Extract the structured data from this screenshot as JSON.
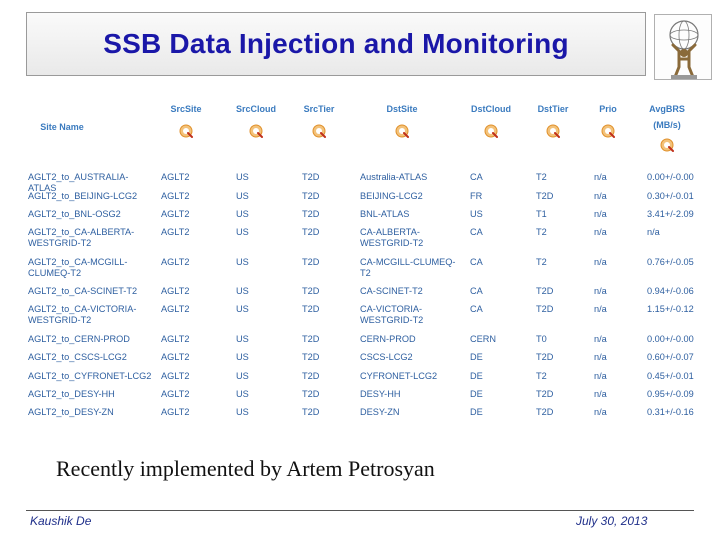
{
  "title": "SSB Data Injection and Monitoring",
  "logo": {
    "icon": "atlas-logo"
  },
  "columns": [
    {
      "key": "site",
      "label": "Site Name"
    },
    {
      "key": "srcsite",
      "label": "SrcSite"
    },
    {
      "key": "srccloud",
      "label": "SrcCloud"
    },
    {
      "key": "srctier",
      "label": "SrcTier"
    },
    {
      "key": "dstsite",
      "label": "DstSite"
    },
    {
      "key": "dstcloud",
      "label": "DstCloud"
    },
    {
      "key": "dsttier",
      "label": "DstTier"
    },
    {
      "key": "prio",
      "label": "Prio"
    },
    {
      "key": "avgbrs",
      "label": "AvgBRS",
      "sublabel": "(MB/s)"
    }
  ],
  "rows": [
    [
      "AGLT2_to_AUSTRALIA-ATLAS",
      "AGLT2",
      "US",
      "T2D",
      "Australia-ATLAS",
      "CA",
      "T2",
      "n/a",
      "0.00+/-0.00"
    ],
    [
      "AGLT2_to_BEIJING-LCG2",
      "AGLT2",
      "US",
      "T2D",
      "BEIJING-LCG2",
      "FR",
      "T2D",
      "n/a",
      "0.30+/-0.01"
    ],
    [
      "AGLT2_to_BNL-OSG2",
      "AGLT2",
      "US",
      "T2D",
      "BNL-ATLAS",
      "US",
      "T1",
      "n/a",
      "3.41+/-2.09"
    ],
    [
      "AGLT2_to_CA-ALBERTA-WESTGRID-T2",
      "AGLT2",
      "US",
      "T2D",
      "CA-ALBERTA-WESTGRID-T2",
      "CA",
      "T2",
      "n/a",
      "n/a"
    ],
    [
      "AGLT2_to_CA-MCGILL-CLUMEQ-T2",
      "AGLT2",
      "US",
      "T2D",
      "CA-MCGILL-CLUMEQ-T2",
      "CA",
      "T2",
      "n/a",
      "0.76+/-0.05"
    ],
    [
      "AGLT2_to_CA-SCINET-T2",
      "AGLT2",
      "US",
      "T2D",
      "CA-SCINET-T2",
      "CA",
      "T2D",
      "n/a",
      "0.94+/-0.06"
    ],
    [
      "AGLT2_to_CA-VICTORIA-WESTGRID-T2",
      "AGLT2",
      "US",
      "T2D",
      "CA-VICTORIA-WESTGRID-T2",
      "CA",
      "T2D",
      "n/a",
      "1.15+/-0.12"
    ],
    [
      "AGLT2_to_CERN-PROD",
      "AGLT2",
      "US",
      "T2D",
      "CERN-PROD",
      "CERN",
      "T0",
      "n/a",
      "0.00+/-0.00"
    ],
    [
      "AGLT2_to_CSCS-LCG2",
      "AGLT2",
      "US",
      "T2D",
      "CSCS-LCG2",
      "DE",
      "T2D",
      "n/a",
      "0.60+/-0.07"
    ],
    [
      "AGLT2_to_CYFRONET-LCG2",
      "AGLT2",
      "US",
      "T2D",
      "CYFRONET-LCG2",
      "DE",
      "T2",
      "n/a",
      "0.45+/-0.01"
    ],
    [
      "AGLT2_to_DESY-HH",
      "AGLT2",
      "US",
      "T2D",
      "DESY-HH",
      "DE",
      "T2D",
      "n/a",
      "0.95+/-0.09"
    ],
    [
      "AGLT2_to_DESY-ZN",
      "AGLT2",
      "US",
      "T2D",
      "DESY-ZN",
      "DE",
      "T2D",
      "n/a",
      "0.31+/-0.16"
    ]
  ],
  "note": "Recently implemented by Artem Petrosyan",
  "footer": {
    "author": "Kaushik De",
    "date": "July 30, 2013"
  },
  "colors": {
    "title": "#1a17a8",
    "header": "#3b7bbf",
    "cell": "#2e5fa0",
    "footer": "#1f2f8a",
    "sort_icon": "#e0902a"
  }
}
